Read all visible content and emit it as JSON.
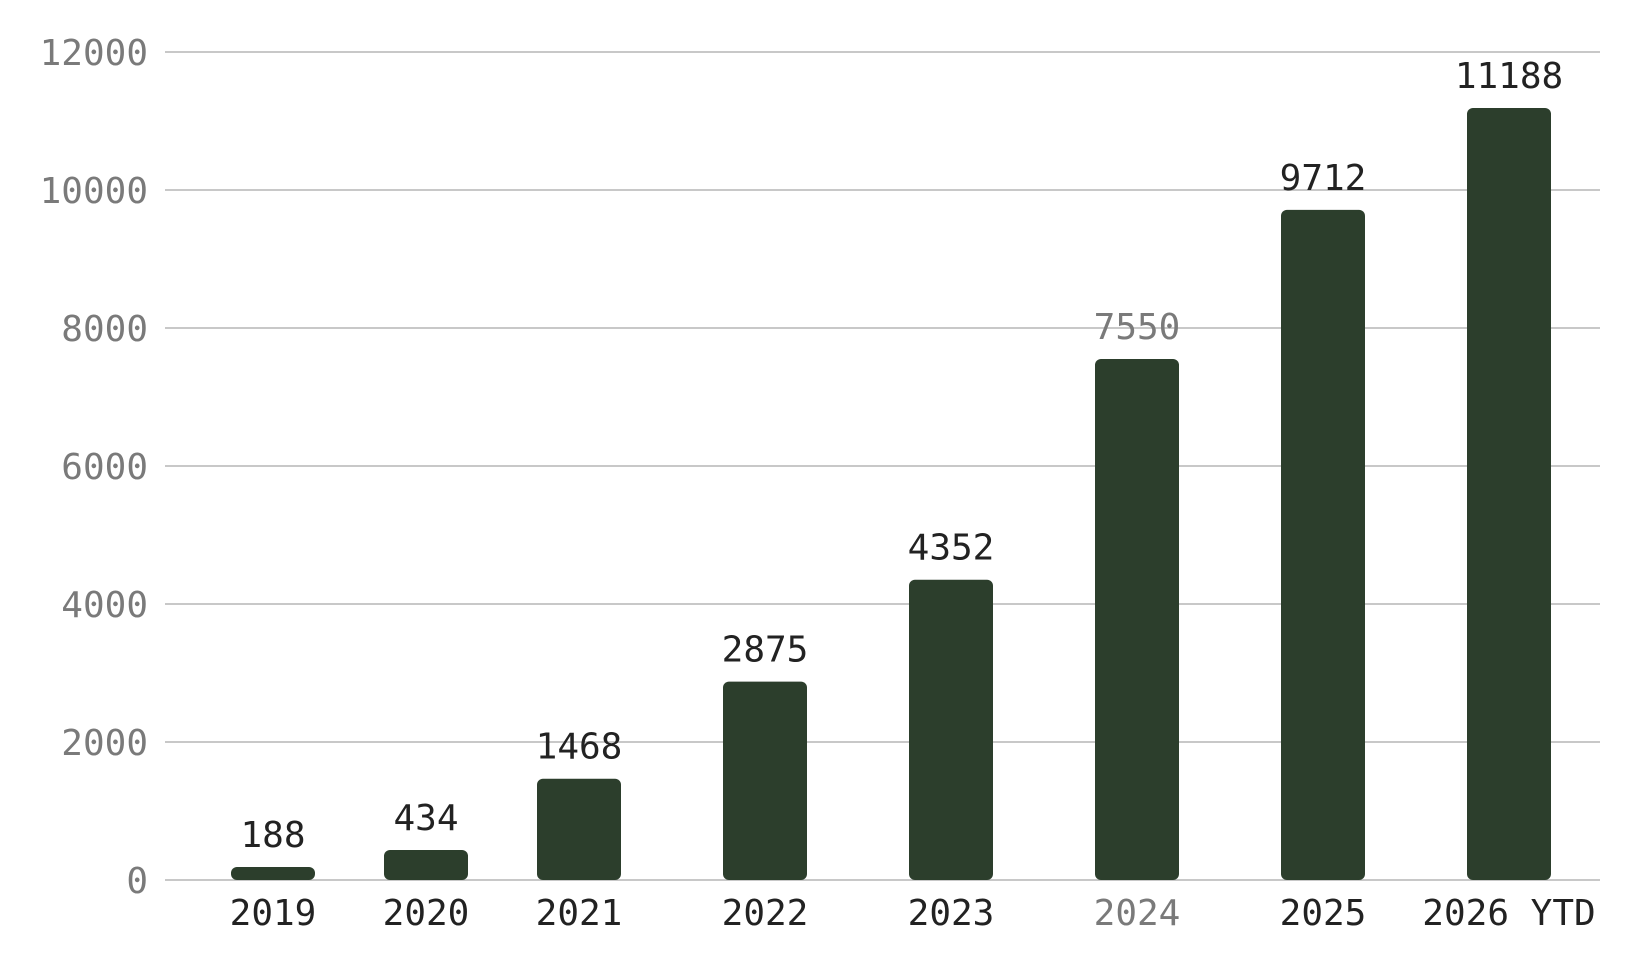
{
  "chart_data": {
    "type": "bar",
    "title": "",
    "xlabel": "",
    "ylabel": "",
    "categories": [
      "2019",
      "2020",
      "2021",
      "2022",
      "2023",
      "2024",
      "2025",
      "2026 YTD"
    ],
    "values": [
      188,
      434,
      1468,
      2875,
      4352,
      7550,
      9712,
      11188
    ],
    "data_labels": [
      "188",
      "434",
      "1468",
      "2875",
      "4352",
      "7550",
      "9712",
      "11188"
    ],
    "y_ticks": [
      "0",
      "2000",
      "4000",
      "6000",
      "8000",
      "10000",
      "12000"
    ],
    "y_tick_values": [
      0,
      2000,
      4000,
      6000,
      8000,
      10000,
      12000
    ],
    "ylim": [
      0,
      12000
    ],
    "grid": true,
    "legend": "none",
    "colors": {
      "bar": "#2c3e2c",
      "grid": "#c8c8c8",
      "tick_text": "#7a7a7a",
      "label_text": "#222222"
    },
    "muted_category": "2024"
  }
}
